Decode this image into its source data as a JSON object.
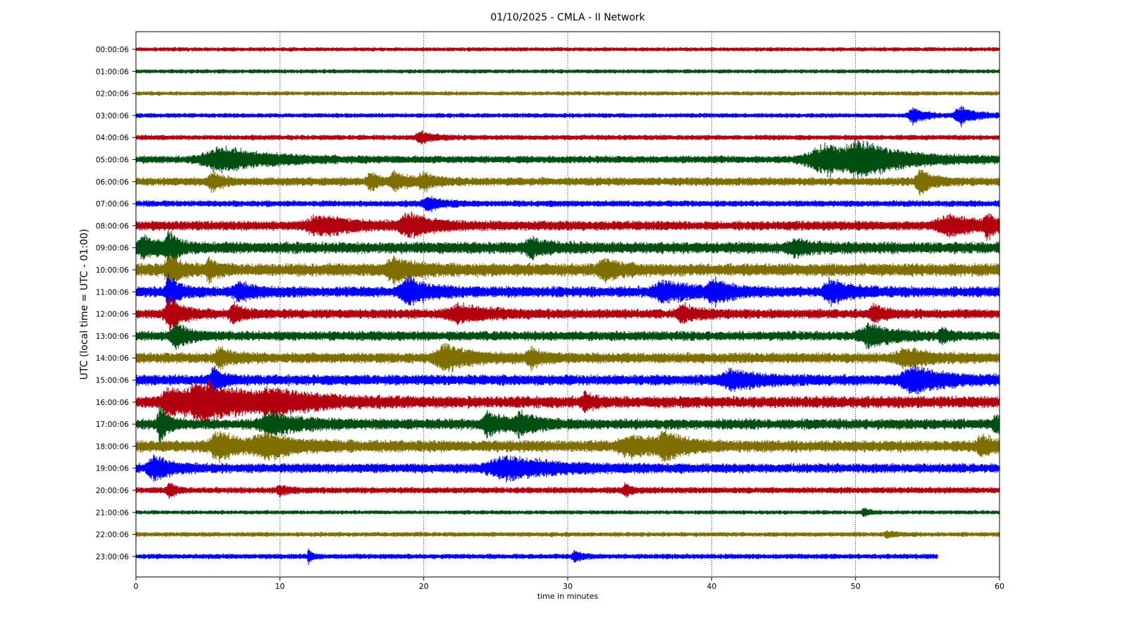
{
  "chart_data": {
    "type": "line",
    "title": "01/10/2025 - CMLA - II Network",
    "xlabel": "time in minutes",
    "ylabel": "UTC (local time = UTC - 01:00)",
    "xlim": [
      0,
      60
    ],
    "xticks": [
      0,
      10,
      20,
      30,
      40,
      50,
      60
    ],
    "x_grid": "dotted vertical lines at each x tick",
    "trace_colors": [
      "#b2000f",
      "#004f12",
      "#7f6e00",
      "#0000ff"
    ],
    "rows": [
      {
        "label": "00:00:06",
        "color": "#b2000f",
        "noise": 0.2,
        "end_minute": 60,
        "events": []
      },
      {
        "label": "01:00:06",
        "color": "#004f12",
        "noise": 0.2,
        "end_minute": 60,
        "events": []
      },
      {
        "label": "02:00:06",
        "color": "#7f6e00",
        "noise": 0.2,
        "end_minute": 60,
        "events": []
      },
      {
        "label": "03:00:06",
        "color": "#0000ff",
        "noise": 0.22,
        "end_minute": 60,
        "events": [
          {
            "t": 54,
            "amp": 0.9,
            "dur": 0.7
          },
          {
            "t": 57.3,
            "amp": 1.0,
            "dur": 1.0
          }
        ]
      },
      {
        "label": "04:00:06",
        "color": "#b2000f",
        "noise": 0.25,
        "end_minute": 60,
        "events": [
          {
            "t": 19.8,
            "amp": 0.6,
            "dur": 0.8
          }
        ]
      },
      {
        "label": "05:00:06",
        "color": "#004f12",
        "noise": 0.35,
        "end_minute": 60,
        "events": [
          {
            "t": 6.0,
            "amp": 1.3,
            "dur": 3.0
          },
          {
            "t": 48.2,
            "amp": 1.6,
            "dur": 3.5
          },
          {
            "t": 50.5,
            "amp": 1.2,
            "dur": 2.0
          }
        ]
      },
      {
        "label": "06:00:06",
        "color": "#7f6e00",
        "noise": 0.4,
        "end_minute": 60,
        "events": [
          {
            "t": 5.3,
            "amp": 1.0,
            "dur": 0.6
          },
          {
            "t": 16.3,
            "amp": 0.9,
            "dur": 0.5
          },
          {
            "t": 18.0,
            "amp": 0.9,
            "dur": 0.8
          },
          {
            "t": 20.0,
            "amp": 0.7,
            "dur": 0.8
          },
          {
            "t": 54.5,
            "amp": 1.3,
            "dur": 0.7
          }
        ]
      },
      {
        "label": "07:00:06",
        "color": "#0000ff",
        "noise": 0.3,
        "end_minute": 60,
        "events": [
          {
            "t": 20.3,
            "amp": 0.8,
            "dur": 0.8
          }
        ]
      },
      {
        "label": "08:00:06",
        "color": "#b2000f",
        "noise": 0.45,
        "end_minute": 60,
        "events": [
          {
            "t": 12.8,
            "amp": 1.0,
            "dur": 2.0
          },
          {
            "t": 19.0,
            "amp": 1.1,
            "dur": 1.5
          },
          {
            "t": 56.5,
            "amp": 1.0,
            "dur": 2.0
          },
          {
            "t": 59.2,
            "amp": 1.0,
            "dur": 0.6
          }
        ]
      },
      {
        "label": "09:00:06",
        "color": "#004f12",
        "noise": 0.55,
        "end_minute": 60,
        "events": [
          {
            "t": 0.5,
            "amp": 1.0,
            "dur": 1.0
          },
          {
            "t": 2.3,
            "amp": 1.6,
            "dur": 0.5
          },
          {
            "t": 27.5,
            "amp": 0.8,
            "dur": 1.0
          },
          {
            "t": 45.8,
            "amp": 0.7,
            "dur": 1.0
          }
        ]
      },
      {
        "label": "10:00:06",
        "color": "#7f6e00",
        "noise": 0.6,
        "end_minute": 60,
        "events": [
          {
            "t": 2.3,
            "amp": 1.7,
            "dur": 0.6
          },
          {
            "t": 5.1,
            "amp": 0.9,
            "dur": 0.5
          },
          {
            "t": 18.0,
            "amp": 1.0,
            "dur": 1.5
          },
          {
            "t": 32.6,
            "amp": 0.9,
            "dur": 1.0
          }
        ]
      },
      {
        "label": "11:00:06",
        "color": "#0000ff",
        "noise": 0.5,
        "end_minute": 60,
        "events": [
          {
            "t": 2.3,
            "amp": 1.6,
            "dur": 0.6
          },
          {
            "t": 7.2,
            "amp": 0.8,
            "dur": 1.0
          },
          {
            "t": 19.0,
            "amp": 1.2,
            "dur": 1.5
          },
          {
            "t": 36.8,
            "amp": 0.9,
            "dur": 2.0
          },
          {
            "t": 40.2,
            "amp": 1.1,
            "dur": 1.0
          },
          {
            "t": 48.3,
            "amp": 1.2,
            "dur": 1.2
          }
        ]
      },
      {
        "label": "12:00:06",
        "color": "#b2000f",
        "noise": 0.45,
        "end_minute": 60,
        "events": [
          {
            "t": 2.4,
            "amp": 1.8,
            "dur": 0.8
          },
          {
            "t": 6.8,
            "amp": 0.9,
            "dur": 0.7
          },
          {
            "t": 22.5,
            "amp": 0.8,
            "dur": 2.0
          },
          {
            "t": 38.0,
            "amp": 0.8,
            "dur": 1.0
          },
          {
            "t": 51.3,
            "amp": 0.8,
            "dur": 0.7
          }
        ]
      },
      {
        "label": "13:00:06",
        "color": "#004f12",
        "noise": 0.45,
        "end_minute": 60,
        "events": [
          {
            "t": 2.8,
            "amp": 1.2,
            "dur": 0.8
          },
          {
            "t": 51.0,
            "amp": 1.1,
            "dur": 1.5
          },
          {
            "t": 56.0,
            "amp": 0.8,
            "dur": 0.5
          }
        ]
      },
      {
        "label": "14:00:06",
        "color": "#7f6e00",
        "noise": 0.5,
        "end_minute": 60,
        "events": [
          {
            "t": 5.8,
            "amp": 0.8,
            "dur": 0.8
          },
          {
            "t": 21.5,
            "amp": 1.3,
            "dur": 1.5
          },
          {
            "t": 27.5,
            "amp": 0.8,
            "dur": 0.7
          },
          {
            "t": 53.5,
            "amp": 0.8,
            "dur": 1.5
          }
        ]
      },
      {
        "label": "15:00:06",
        "color": "#0000ff",
        "noise": 0.5,
        "end_minute": 60,
        "events": [
          {
            "t": 5.4,
            "amp": 1.5,
            "dur": 0.5
          },
          {
            "t": 41.5,
            "amp": 0.8,
            "dur": 2.0
          },
          {
            "t": 54.0,
            "amp": 1.3,
            "dur": 2.0
          }
        ]
      },
      {
        "label": "16:00:06",
        "color": "#b2000f",
        "noise": 0.55,
        "end_minute": 60,
        "events": [
          {
            "t": 2.2,
            "amp": 1.4,
            "dur": 0.8
          },
          {
            "t": 4.8,
            "amp": 1.9,
            "dur": 3.5
          },
          {
            "t": 9.5,
            "amp": 0.9,
            "dur": 2.0
          },
          {
            "t": 31.2,
            "amp": 0.8,
            "dur": 0.5
          }
        ]
      },
      {
        "label": "17:00:06",
        "color": "#004f12",
        "noise": 0.5,
        "end_minute": 60,
        "events": [
          {
            "t": 1.7,
            "amp": 1.9,
            "dur": 0.5
          },
          {
            "t": 9.5,
            "amp": 1.0,
            "dur": 2.0
          },
          {
            "t": 24.5,
            "amp": 1.1,
            "dur": 1.0
          },
          {
            "t": 26.7,
            "amp": 1.0,
            "dur": 1.0
          },
          {
            "t": 59.8,
            "amp": 0.8,
            "dur": 0.6
          }
        ]
      },
      {
        "label": "18:00:06",
        "color": "#7f6e00",
        "noise": 0.55,
        "end_minute": 60,
        "events": [
          {
            "t": 5.7,
            "amp": 1.5,
            "dur": 1.2
          },
          {
            "t": 9.0,
            "amp": 1.1,
            "dur": 2.0
          },
          {
            "t": 34.5,
            "amp": 1.0,
            "dur": 2.0
          },
          {
            "t": 36.8,
            "amp": 1.2,
            "dur": 1.0
          },
          {
            "t": 58.8,
            "amp": 1.0,
            "dur": 0.8
          }
        ]
      },
      {
        "label": "19:00:06",
        "color": "#0000ff",
        "noise": 0.45,
        "end_minute": 60,
        "events": [
          {
            "t": 1.3,
            "amp": 1.3,
            "dur": 1.0
          },
          {
            "t": 25.8,
            "amp": 1.1,
            "dur": 3.0
          }
        ]
      },
      {
        "label": "20:00:06",
        "color": "#b2000f",
        "noise": 0.3,
        "end_minute": 60,
        "events": [
          {
            "t": 2.3,
            "amp": 0.8,
            "dur": 0.4
          },
          {
            "t": 10.0,
            "amp": 0.5,
            "dur": 0.5
          },
          {
            "t": 34.0,
            "amp": 0.6,
            "dur": 0.4
          }
        ]
      },
      {
        "label": "21:00:06",
        "color": "#004f12",
        "noise": 0.2,
        "end_minute": 60,
        "events": [
          {
            "t": 50.6,
            "amp": 0.4,
            "dur": 0.4
          }
        ]
      },
      {
        "label": "22:00:06",
        "color": "#7f6e00",
        "noise": 0.22,
        "end_minute": 60,
        "events": [
          {
            "t": 52.2,
            "amp": 0.3,
            "dur": 0.4
          }
        ]
      },
      {
        "label": "23:00:06",
        "color": "#0000ff",
        "noise": 0.25,
        "end_minute": 55.7,
        "events": [
          {
            "t": 12.0,
            "amp": 0.7,
            "dur": 0.2
          },
          {
            "t": 30.5,
            "amp": 0.6,
            "dur": 0.4
          }
        ]
      }
    ]
  }
}
